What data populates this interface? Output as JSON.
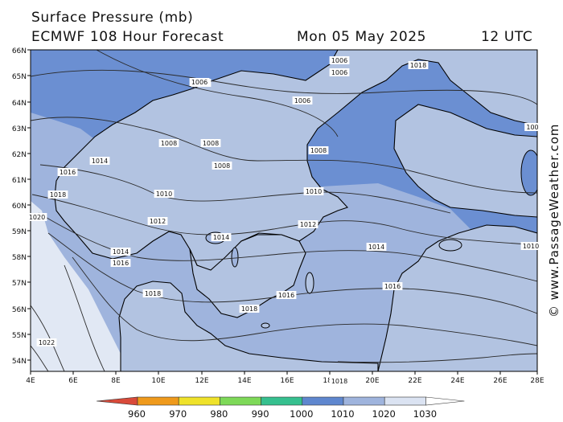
{
  "header": {
    "title": "Surface Pressure (mb)",
    "model": "ECMWF 108 Hour Forecast",
    "date": "Mon 05 May 2025",
    "time": "12 UTC"
  },
  "credit": "© www.PassageWeather.com",
  "colors": {
    "land": "#b2c3e1",
    "sea_high": "#dde5f3",
    "sea_low": "#5f87cf",
    "coast": "#000000",
    "isobar": "#222222"
  },
  "map": {
    "lat_labels": [
      "66N",
      "65N",
      "64N",
      "63N",
      "62N",
      "61N",
      "60N",
      "59N",
      "58N",
      "57N",
      "56N",
      "55N",
      "54N"
    ],
    "lon_labels": [
      "4E",
      "6E",
      "8E",
      "10E",
      "12E",
      "14E",
      "16E",
      "18E",
      "20E",
      "22E",
      "24E",
      "26E",
      "28E"
    ],
    "isobar_labels": [
      "1006",
      "1006",
      "1006",
      "1006",
      "1008",
      "1008",
      "1008",
      "1008",
      "1010",
      "1010",
      "1012",
      "1012",
      "1014",
      "1014",
      "1014",
      "1014",
      "1014",
      "1016",
      "1016",
      "1016",
      "1016",
      "1018",
      "1018",
      "1018",
      "1018",
      "1020",
      "1022",
      "1018",
      "1006",
      "1010",
      "100"
    ]
  },
  "legend": {
    "values": [
      "960",
      "970",
      "980",
      "990",
      "1000",
      "1010",
      "1020",
      "1030"
    ],
    "colors": [
      "#d94a3a",
      "#ef9a1c",
      "#efe22a",
      "#7ed958",
      "#36c08f",
      "#5f87cf",
      "#9fb4dd",
      "#dbe3f2",
      "#ffffff"
    ]
  }
}
